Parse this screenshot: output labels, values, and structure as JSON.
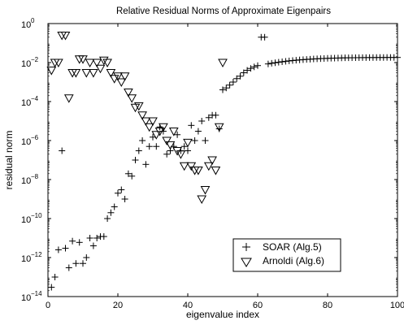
{
  "chart_data": {
    "type": "scatter",
    "title": "Relative Residual Norms of Approximate Eigenpairs",
    "xlabel": "eigenvalue index",
    "ylabel": "residual norm",
    "xlim": [
      0,
      100
    ],
    "ylim_exponent": [
      -14,
      0
    ],
    "yscale": "log",
    "grid": false,
    "legend_position": "bottom-right",
    "x_ticks": [
      0,
      20,
      40,
      60,
      80,
      100
    ],
    "x_tick_labels": [
      "0",
      "20",
      "40",
      "60",
      "80",
      "100"
    ],
    "y_tick_exponents": [
      -14,
      -12,
      -10,
      -8,
      -6,
      -4,
      -2,
      0
    ],
    "y_tick_labels": [
      "10",
      "10",
      "10",
      "10",
      "10",
      "10",
      "10",
      "10"
    ],
    "y_tick_superscripts": [
      "−14",
      "−12",
      "−10",
      "−8",
      "−6",
      "−4",
      "−2",
      "0"
    ],
    "series": [
      {
        "name": "SOAR (Alg.5)",
        "marker": "plus",
        "points": [
          [
            1,
            3e-14
          ],
          [
            2,
            1e-13
          ],
          [
            3,
            2.5e-12
          ],
          [
            4,
            3e-07
          ],
          [
            5,
            3e-12
          ],
          [
            6,
            3e-13
          ],
          [
            7,
            7e-12
          ],
          [
            8,
            5e-13
          ],
          [
            9,
            6e-12
          ],
          [
            10,
            5e-13
          ],
          [
            11,
            1e-12
          ],
          [
            12,
            1e-11
          ],
          [
            13,
            4e-12
          ],
          [
            14,
            1e-11
          ],
          [
            15,
            1.2e-11
          ],
          [
            16,
            1.2e-11
          ],
          [
            17,
            1e-10
          ],
          [
            18,
            2e-10
          ],
          [
            19,
            4e-10
          ],
          [
            20,
            2e-09
          ],
          [
            21,
            3e-09
          ],
          [
            22,
            1e-09
          ],
          [
            23,
            2e-08
          ],
          [
            24,
            1.5e-08
          ],
          [
            25,
            1e-07
          ],
          [
            26,
            3e-07
          ],
          [
            27,
            1e-06
          ],
          [
            28,
            6e-08
          ],
          [
            29,
            5e-07
          ],
          [
            30,
            1.5e-06
          ],
          [
            31,
            5e-07
          ],
          [
            32,
            5e-06
          ],
          [
            33,
            3e-06
          ],
          [
            34,
            2e-07
          ],
          [
            35,
            3e-07
          ],
          [
            36,
            5e-07
          ],
          [
            37,
            2e-06
          ],
          [
            38,
            3e-07
          ],
          [
            39,
            5e-07
          ],
          [
            40,
            3e-07
          ],
          [
            41,
            6e-06
          ],
          [
            42,
            1e-06
          ],
          [
            43,
            3e-06
          ],
          [
            44,
            1e-05
          ],
          [
            45,
            1e-06
          ],
          [
            46,
            1.5e-05
          ],
          [
            47,
            2e-05
          ],
          [
            48,
            2e-05
          ],
          [
            49,
            4e-06
          ],
          [
            50,
            0.0004
          ],
          [
            51,
            0.0005
          ],
          [
            52,
            0.0007
          ],
          [
            53,
            0.001
          ],
          [
            54,
            0.0015
          ],
          [
            55,
            0.002
          ],
          [
            56,
            0.003
          ],
          [
            57,
            0.004
          ],
          [
            58,
            0.005
          ],
          [
            59,
            0.006
          ],
          [
            60,
            0.007
          ],
          [
            61,
            0.2
          ],
          [
            62,
            0.2
          ],
          [
            63,
            0.0085
          ],
          [
            64,
            0.0092
          ],
          [
            65,
            0.0098
          ],
          [
            66,
            0.0104
          ],
          [
            67,
            0.011
          ],
          [
            68,
            0.0116
          ],
          [
            69,
            0.0122
          ],
          [
            70,
            0.0127
          ],
          [
            71,
            0.0132
          ],
          [
            72,
            0.0137
          ],
          [
            73,
            0.0141
          ],
          [
            74,
            0.0145
          ],
          [
            75,
            0.0149
          ],
          [
            76,
            0.0153
          ],
          [
            77,
            0.0156
          ],
          [
            78,
            0.0159
          ],
          [
            79,
            0.0162
          ],
          [
            80,
            0.0165
          ],
          [
            81,
            0.0167
          ],
          [
            82,
            0.0169
          ],
          [
            83,
            0.0171
          ],
          [
            84,
            0.0173
          ],
          [
            85,
            0.0175
          ],
          [
            86,
            0.0176
          ],
          [
            87,
            0.0177
          ],
          [
            88,
            0.0178
          ],
          [
            89,
            0.0179
          ],
          [
            90,
            0.018
          ],
          [
            91,
            0.018
          ],
          [
            92,
            0.0181
          ],
          [
            93,
            0.0181
          ],
          [
            94,
            0.0182
          ],
          [
            95,
            0.0182
          ],
          [
            96,
            0.0182
          ],
          [
            97,
            0.0183
          ],
          [
            98,
            0.0183
          ],
          [
            99,
            0.0183
          ],
          [
            100,
            0.0183
          ]
        ]
      },
      {
        "name": "Arnoldi (Alg.6)",
        "marker": "triangle-down",
        "points": [
          [
            1,
            0.004
          ],
          [
            2,
            0.01
          ],
          [
            3,
            0.01
          ],
          [
            4,
            0.25
          ],
          [
            5,
            0.25
          ],
          [
            6,
            0.00015
          ],
          [
            7,
            0.003
          ],
          [
            8,
            0.003
          ],
          [
            9,
            0.015
          ],
          [
            10,
            0.015
          ],
          [
            11,
            0.003
          ],
          [
            12,
            0.01
          ],
          [
            13,
            0.003
          ],
          [
            14,
            0.01
          ],
          [
            15,
            0.005
          ],
          [
            16,
            0.013
          ],
          [
            17,
            0.01
          ],
          [
            18,
            0.003
          ],
          [
            19,
            0.0015
          ],
          [
            20,
            0.002
          ],
          [
            21,
            0.001
          ],
          [
            22,
            0.002
          ],
          [
            23,
            0.0003
          ],
          [
            24,
            0.00015
          ],
          [
            25,
            5e-05
          ],
          [
            26,
            6e-05
          ],
          [
            27,
            2e-05
          ],
          [
            28,
            1e-05
          ],
          [
            29,
            5e-06
          ],
          [
            30,
            1e-05
          ],
          [
            31,
            2e-06
          ],
          [
            32,
            3e-06
          ],
          [
            33,
            5e-06
          ],
          [
            34,
            1e-06
          ],
          [
            35,
            6e-07
          ],
          [
            36,
            3e-06
          ],
          [
            37,
            3e-07
          ],
          [
            38,
            2e-07
          ],
          [
            39,
            5e-08
          ],
          [
            40,
            8e-07
          ],
          [
            41,
            5e-08
          ],
          [
            42,
            3e-08
          ],
          [
            43,
            3e-08
          ],
          [
            44,
            1e-09
          ],
          [
            45,
            3e-09
          ],
          [
            46,
            5e-08
          ],
          [
            47,
            1e-07
          ],
          [
            48,
            3e-08
          ],
          [
            49,
            5e-06
          ],
          [
            50,
            0.01
          ]
        ]
      }
    ]
  }
}
